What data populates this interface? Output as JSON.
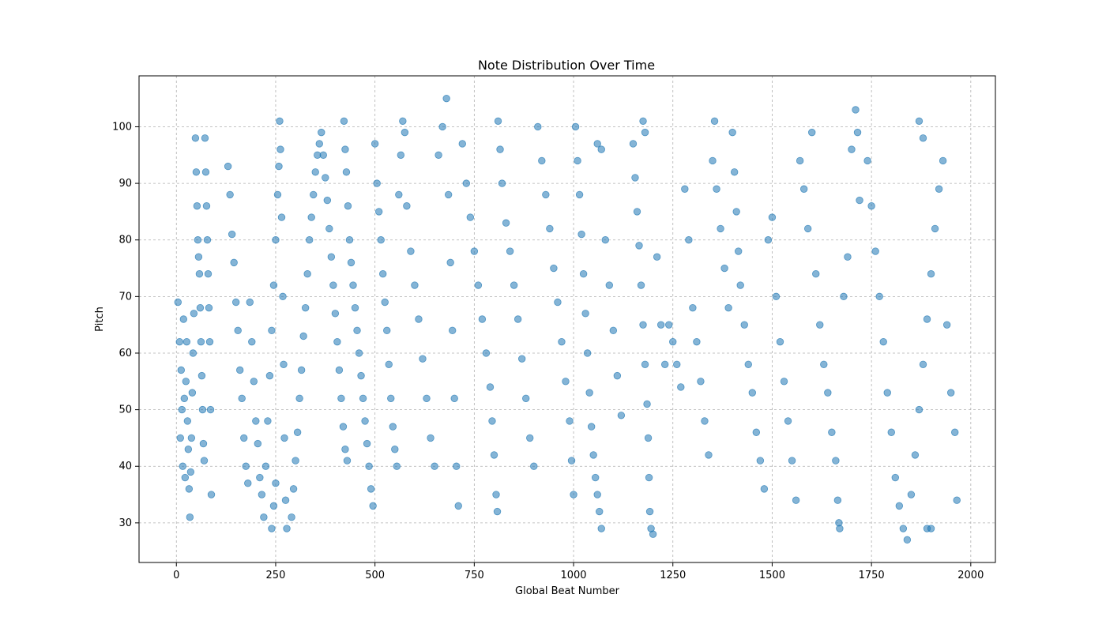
{
  "chart_data": {
    "type": "scatter",
    "title": "Note Distribution Over Time",
    "xlabel": "Global Beat Number",
    "ylabel": "Pitch",
    "xlim": [
      -94,
      2062
    ],
    "ylim": [
      23,
      109
    ],
    "xticks": [
      0,
      250,
      500,
      750,
      1000,
      1250,
      1500,
      1750,
      2000
    ],
    "yticks": [
      30,
      40,
      50,
      60,
      70,
      80,
      90,
      100
    ],
    "grid": true,
    "marker_color": "#1f77b4",
    "marker_opacity": 0.55,
    "series": [
      {
        "points": [
          [
            4,
            69
          ],
          [
            8,
            62
          ],
          [
            10,
            45
          ],
          [
            12,
            57
          ],
          [
            14,
            50
          ],
          [
            16,
            40
          ],
          [
            18,
            66
          ],
          [
            20,
            52
          ],
          [
            22,
            38
          ],
          [
            24,
            55
          ],
          [
            26,
            62
          ],
          [
            28,
            48
          ],
          [
            30,
            43
          ],
          [
            32,
            36
          ],
          [
            34,
            31
          ],
          [
            36,
            39
          ],
          [
            38,
            45
          ],
          [
            40,
            53
          ],
          [
            42,
            60
          ],
          [
            44,
            67
          ],
          [
            48,
            98
          ],
          [
            50,
            92
          ],
          [
            52,
            86
          ],
          [
            54,
            80
          ],
          [
            56,
            77
          ],
          [
            58,
            74
          ],
          [
            60,
            68
          ],
          [
            62,
            62
          ],
          [
            64,
            56
          ],
          [
            66,
            50
          ],
          [
            68,
            44
          ],
          [
            70,
            41
          ],
          [
            72,
            98
          ],
          [
            74,
            92
          ],
          [
            76,
            86
          ],
          [
            78,
            80
          ],
          [
            80,
            74
          ],
          [
            82,
            68
          ],
          [
            84,
            62
          ],
          [
            86,
            50
          ],
          [
            88,
            35
          ],
          [
            130,
            93
          ],
          [
            135,
            88
          ],
          [
            140,
            81
          ],
          [
            145,
            76
          ],
          [
            150,
            69
          ],
          [
            155,
            64
          ],
          [
            160,
            57
          ],
          [
            165,
            52
          ],
          [
            170,
            45
          ],
          [
            175,
            40
          ],
          [
            180,
            37
          ],
          [
            185,
            69
          ],
          [
            190,
            62
          ],
          [
            195,
            55
          ],
          [
            200,
            48
          ],
          [
            205,
            44
          ],
          [
            210,
            38
          ],
          [
            215,
            35
          ],
          [
            220,
            31
          ],
          [
            225,
            40
          ],
          [
            230,
            48
          ],
          [
            235,
            56
          ],
          [
            240,
            64
          ],
          [
            245,
            72
          ],
          [
            250,
            80
          ],
          [
            255,
            88
          ],
          [
            258,
            93
          ],
          [
            260,
            101
          ],
          [
            262,
            96
          ],
          [
            265,
            84
          ],
          [
            268,
            70
          ],
          [
            270,
            58
          ],
          [
            272,
            45
          ],
          [
            275,
            34
          ],
          [
            278,
            29
          ],
          [
            240,
            29
          ],
          [
            245,
            33
          ],
          [
            250,
            37
          ],
          [
            290,
            31
          ],
          [
            295,
            36
          ],
          [
            300,
            41
          ],
          [
            305,
            46
          ],
          [
            310,
            52
          ],
          [
            315,
            57
          ],
          [
            320,
            63
          ],
          [
            325,
            68
          ],
          [
            330,
            74
          ],
          [
            335,
            80
          ],
          [
            340,
            84
          ],
          [
            345,
            88
          ],
          [
            350,
            92
          ],
          [
            355,
            95
          ],
          [
            360,
            97
          ],
          [
            365,
            99
          ],
          [
            370,
            95
          ],
          [
            375,
            91
          ],
          [
            380,
            87
          ],
          [
            385,
            82
          ],
          [
            390,
            77
          ],
          [
            395,
            72
          ],
          [
            400,
            67
          ],
          [
            405,
            62
          ],
          [
            410,
            57
          ],
          [
            415,
            52
          ],
          [
            420,
            47
          ],
          [
            425,
            43
          ],
          [
            430,
            41
          ],
          [
            422,
            101
          ],
          [
            425,
            96
          ],
          [
            428,
            92
          ],
          [
            432,
            86
          ],
          [
            436,
            80
          ],
          [
            440,
            76
          ],
          [
            445,
            72
          ],
          [
            450,
            68
          ],
          [
            455,
            64
          ],
          [
            460,
            60
          ],
          [
            465,
            56
          ],
          [
            470,
            52
          ],
          [
            475,
            48
          ],
          [
            480,
            44
          ],
          [
            485,
            40
          ],
          [
            490,
            36
          ],
          [
            495,
            33
          ],
          [
            500,
            97
          ],
          [
            505,
            90
          ],
          [
            510,
            85
          ],
          [
            515,
            80
          ],
          [
            520,
            74
          ],
          [
            525,
            69
          ],
          [
            530,
            64
          ],
          [
            535,
            58
          ],
          [
            540,
            52
          ],
          [
            545,
            47
          ],
          [
            550,
            43
          ],
          [
            555,
            40
          ],
          [
            560,
            88
          ],
          [
            565,
            95
          ],
          [
            570,
            101
          ],
          [
            575,
            99
          ],
          [
            580,
            86
          ],
          [
            590,
            78
          ],
          [
            600,
            72
          ],
          [
            610,
            66
          ],
          [
            620,
            59
          ],
          [
            630,
            52
          ],
          [
            640,
            45
          ],
          [
            650,
            40
          ],
          [
            660,
            95
          ],
          [
            670,
            100
          ],
          [
            680,
            105
          ],
          [
            685,
            88
          ],
          [
            690,
            76
          ],
          [
            695,
            64
          ],
          [
            700,
            52
          ],
          [
            705,
            40
          ],
          [
            710,
            33
          ],
          [
            720,
            97
          ],
          [
            730,
            90
          ],
          [
            740,
            84
          ],
          [
            750,
            78
          ],
          [
            760,
            72
          ],
          [
            770,
            66
          ],
          [
            780,
            60
          ],
          [
            790,
            54
          ],
          [
            795,
            48
          ],
          [
            800,
            42
          ],
          [
            805,
            35
          ],
          [
            808,
            32
          ],
          [
            810,
            101
          ],
          [
            815,
            96
          ],
          [
            820,
            90
          ],
          [
            830,
            83
          ],
          [
            840,
            78
          ],
          [
            850,
            72
          ],
          [
            860,
            66
          ],
          [
            870,
            59
          ],
          [
            880,
            52
          ],
          [
            890,
            45
          ],
          [
            900,
            40
          ],
          [
            910,
            100
          ],
          [
            920,
            94
          ],
          [
            930,
            88
          ],
          [
            940,
            82
          ],
          [
            950,
            75
          ],
          [
            960,
            69
          ],
          [
            970,
            62
          ],
          [
            980,
            55
          ],
          [
            990,
            48
          ],
          [
            995,
            41
          ],
          [
            1000,
            35
          ],
          [
            1005,
            100
          ],
          [
            1010,
            94
          ],
          [
            1015,
            88
          ],
          [
            1020,
            81
          ],
          [
            1025,
            74
          ],
          [
            1030,
            67
          ],
          [
            1035,
            60
          ],
          [
            1040,
            53
          ],
          [
            1045,
            47
          ],
          [
            1050,
            42
          ],
          [
            1055,
            38
          ],
          [
            1060,
            35
          ],
          [
            1065,
            32
          ],
          [
            1070,
            29
          ],
          [
            1060,
            97
          ],
          [
            1070,
            96
          ],
          [
            1080,
            80
          ],
          [
            1090,
            72
          ],
          [
            1100,
            64
          ],
          [
            1110,
            56
          ],
          [
            1120,
            49
          ],
          [
            1150,
            97
          ],
          [
            1155,
            91
          ],
          [
            1160,
            85
          ],
          [
            1165,
            79
          ],
          [
            1170,
            72
          ],
          [
            1175,
            65
          ],
          [
            1180,
            58
          ],
          [
            1185,
            51
          ],
          [
            1188,
            45
          ],
          [
            1190,
            38
          ],
          [
            1192,
            32
          ],
          [
            1195,
            29
          ],
          [
            1175,
            101
          ],
          [
            1180,
            99
          ],
          [
            1200,
            28
          ],
          [
            1210,
            77
          ],
          [
            1220,
            65
          ],
          [
            1230,
            58
          ],
          [
            1240,
            65
          ],
          [
            1250,
            62
          ],
          [
            1260,
            58
          ],
          [
            1270,
            54
          ],
          [
            1280,
            89
          ],
          [
            1290,
            80
          ],
          [
            1300,
            68
          ],
          [
            1310,
            62
          ],
          [
            1320,
            55
          ],
          [
            1330,
            48
          ],
          [
            1340,
            42
          ],
          [
            1350,
            94
          ],
          [
            1355,
            101
          ],
          [
            1360,
            89
          ],
          [
            1370,
            82
          ],
          [
            1380,
            75
          ],
          [
            1390,
            68
          ],
          [
            1400,
            99
          ],
          [
            1405,
            92
          ],
          [
            1410,
            85
          ],
          [
            1415,
            78
          ],
          [
            1420,
            72
          ],
          [
            1430,
            65
          ],
          [
            1440,
            58
          ],
          [
            1450,
            53
          ],
          [
            1460,
            46
          ],
          [
            1470,
            41
          ],
          [
            1480,
            36
          ],
          [
            1490,
            80
          ],
          [
            1500,
            84
          ],
          [
            1510,
            70
          ],
          [
            1520,
            62
          ],
          [
            1530,
            55
          ],
          [
            1540,
            48
          ],
          [
            1550,
            41
          ],
          [
            1560,
            34
          ],
          [
            1570,
            94
          ],
          [
            1580,
            89
          ],
          [
            1590,
            82
          ],
          [
            1600,
            99
          ],
          [
            1610,
            74
          ],
          [
            1620,
            65
          ],
          [
            1630,
            58
          ],
          [
            1640,
            53
          ],
          [
            1650,
            46
          ],
          [
            1660,
            41
          ],
          [
            1665,
            34
          ],
          [
            1668,
            30
          ],
          [
            1670,
            29
          ],
          [
            1680,
            70
          ],
          [
            1690,
            77
          ],
          [
            1700,
            96
          ],
          [
            1710,
            103
          ],
          [
            1715,
            99
          ],
          [
            1720,
            87
          ],
          [
            1740,
            94
          ],
          [
            1750,
            86
          ],
          [
            1760,
            78
          ],
          [
            1770,
            70
          ],
          [
            1780,
            62
          ],
          [
            1790,
            53
          ],
          [
            1800,
            46
          ],
          [
            1810,
            38
          ],
          [
            1820,
            33
          ],
          [
            1830,
            29
          ],
          [
            1840,
            27
          ],
          [
            1850,
            35
          ],
          [
            1860,
            42
          ],
          [
            1870,
            50
          ],
          [
            1880,
            58
          ],
          [
            1890,
            66
          ],
          [
            1900,
            74
          ],
          [
            1910,
            82
          ],
          [
            1920,
            89
          ],
          [
            1930,
            94
          ],
          [
            1940,
            65
          ],
          [
            1950,
            53
          ],
          [
            1960,
            46
          ],
          [
            1965,
            34
          ],
          [
            1870,
            101
          ],
          [
            1880,
            98
          ],
          [
            1890,
            29
          ],
          [
            1900,
            29
          ]
        ]
      }
    ]
  }
}
